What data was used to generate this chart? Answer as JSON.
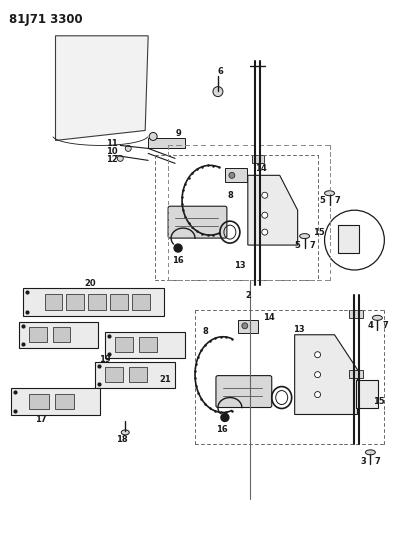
{
  "title": "81J71 3300",
  "bg_color": "#ffffff",
  "title_fontsize": 8.5,
  "title_fontweight": "bold",
  "fig_width": 3.98,
  "fig_height": 5.33,
  "dpi": 100,
  "line_color": "#1a1a1a",
  "gray_fill": "#d8d8d8",
  "light_fill": "#ebebeb"
}
